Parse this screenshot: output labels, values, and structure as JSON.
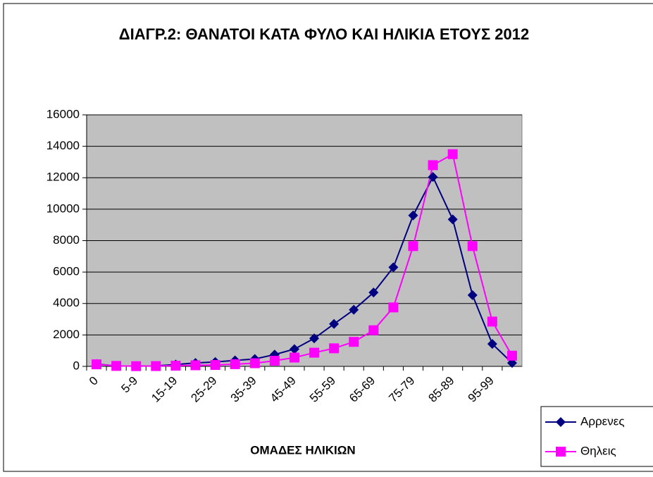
{
  "chart_data": {
    "type": "line",
    "title": "ΔΙΑΓΡ.2:  ΘΑΝΑΤΟΙ ΚΑΤΑ ΦΥΛΟ ΚΑΙ ΗΛΙΚΙΑ ΕΤΟΥΣ 2012",
    "x_label": "ΟΜΑΔΕΣ ΗΛΙΚΙΩΝ",
    "categories": [
      "0",
      null,
      "5-9",
      null,
      "15-19",
      null,
      "25-29",
      null,
      "35-39",
      null,
      "45-49",
      null,
      "55-59",
      null,
      "65-69",
      null,
      "75-79",
      null,
      "85-89",
      null,
      "95-99",
      null
    ],
    "series": [
      {
        "name": "Αρρενες",
        "color": "#000080",
        "marker": "diamond",
        "values": [
          150,
          20,
          20,
          30,
          120,
          220,
          280,
          380,
          470,
          750,
          1100,
          1780,
          2700,
          3600,
          4700,
          6300,
          9600,
          12050,
          9350,
          4530,
          1430,
          220
        ]
      },
      {
        "name": "Θηλεις",
        "color": "#ff00ff",
        "marker": "square",
        "values": [
          130,
          30,
          15,
          20,
          45,
          70,
          90,
          140,
          200,
          360,
          560,
          870,
          1150,
          1560,
          2300,
          3750,
          7650,
          12800,
          13500,
          7650,
          2850,
          680
        ]
      }
    ],
    "ylim": [
      0,
      16000
    ],
    "yticks": [
      0,
      2000,
      4000,
      6000,
      8000,
      10000,
      12000,
      14000,
      16000
    ],
    "grid": true,
    "legend": "lower right",
    "plot_background": "#c0c0c0"
  }
}
